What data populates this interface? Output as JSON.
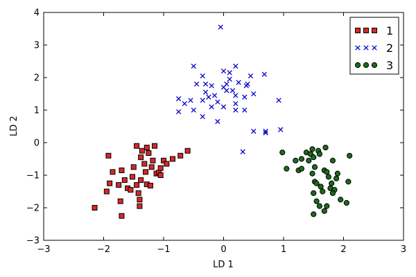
{
  "chart_data": {
    "type": "scatter",
    "title": "",
    "xlabel": "LD 1",
    "ylabel": "LD 2",
    "xlim": [
      -3,
      3
    ],
    "ylim": [
      -3,
      4
    ],
    "xticks": [
      "−3",
      "−2",
      "−1",
      "0",
      "1",
      "2",
      "3"
    ],
    "yticks": [
      "−3",
      "−2",
      "−1",
      "0",
      "1",
      "2",
      "3",
      "4"
    ],
    "grid": false,
    "legend_position": "top-right",
    "series": [
      {
        "name": "1",
        "marker": "square",
        "color": "#d62728",
        "points": [
          [
            -2.15,
            -2.0
          ],
          [
            -1.95,
            -1.5
          ],
          [
            -1.9,
            -1.25
          ],
          [
            -1.85,
            -0.9
          ],
          [
            -1.92,
            -0.4
          ],
          [
            -1.75,
            -1.3
          ],
          [
            -1.72,
            -1.8
          ],
          [
            -1.7,
            -2.25
          ],
          [
            -1.65,
            -1.15
          ],
          [
            -1.6,
            -1.4
          ],
          [
            -1.55,
            -1.45
          ],
          [
            -1.52,
            -1.05
          ],
          [
            -1.5,
            -0.75
          ],
          [
            -1.45,
            -1.3
          ],
          [
            -1.42,
            -1.55
          ],
          [
            -1.4,
            -1.75
          ],
          [
            -1.4,
            -1.95
          ],
          [
            -1.38,
            -0.45
          ],
          [
            -1.36,
            -0.25
          ],
          [
            -1.32,
            -0.65
          ],
          [
            -1.3,
            -0.9
          ],
          [
            -1.28,
            -1.28
          ],
          [
            -1.25,
            -0.32
          ],
          [
            -1.22,
            -1.32
          ],
          [
            -1.2,
            -0.75
          ],
          [
            -1.18,
            -0.55
          ],
          [
            -1.15,
            -0.1
          ],
          [
            -1.12,
            -0.95
          ],
          [
            -1.08,
            -0.92
          ],
          [
            -1.05,
            -0.78
          ],
          [
            -1.0,
            -0.55
          ],
          [
            -0.95,
            -0.65
          ],
          [
            -0.85,
            -0.5
          ],
          [
            -0.72,
            -0.4
          ],
          [
            -0.6,
            -0.25
          ],
          [
            -1.45,
            -0.1
          ],
          [
            -1.28,
            -0.15
          ],
          [
            -1.7,
            -0.85
          ],
          [
            -1.38,
            -1.15
          ],
          [
            -1.05,
            -1.0
          ]
        ]
      },
      {
        "name": "2",
        "marker": "x",
        "color": "#0000cc",
        "points": [
          [
            -0.05,
            3.55
          ],
          [
            -0.5,
            2.35
          ],
          [
            0.2,
            2.35
          ],
          [
            -0.35,
            2.05
          ],
          [
            0.0,
            2.2
          ],
          [
            0.1,
            2.15
          ],
          [
            0.68,
            2.1
          ],
          [
            0.45,
            2.05
          ],
          [
            -0.45,
            1.8
          ],
          [
            -0.3,
            1.8
          ],
          [
            -0.2,
            1.75
          ],
          [
            0.05,
            1.8
          ],
          [
            0.1,
            1.95
          ],
          [
            0.25,
            1.85
          ],
          [
            0.4,
            1.8
          ],
          [
            0.38,
            1.75
          ],
          [
            -0.3,
            1.55
          ],
          [
            -0.15,
            1.45
          ],
          [
            0.0,
            1.7
          ],
          [
            0.15,
            1.6
          ],
          [
            0.2,
            1.45
          ],
          [
            0.35,
            1.4
          ],
          [
            0.5,
            1.5
          ],
          [
            -0.35,
            1.3
          ],
          [
            -0.25,
            1.4
          ],
          [
            -0.1,
            1.25
          ],
          [
            0.0,
            1.1
          ],
          [
            0.2,
            1.2
          ],
          [
            -0.55,
            1.3
          ],
          [
            -0.65,
            1.2
          ],
          [
            -0.5,
            1.0
          ],
          [
            -0.75,
            1.35
          ],
          [
            -0.2,
            1.1
          ],
          [
            0.2,
            1.0
          ],
          [
            0.35,
            1.0
          ],
          [
            -0.35,
            0.8
          ],
          [
            -0.75,
            0.95
          ],
          [
            -0.1,
            0.65
          ],
          [
            0.5,
            0.35
          ],
          [
            0.7,
            0.35
          ],
          [
            0.7,
            0.3
          ],
          [
            0.95,
            0.4
          ],
          [
            0.92,
            1.3
          ],
          [
            0.32,
            -0.28
          ],
          [
            0.05,
            1.6
          ]
        ]
      },
      {
        "name": "3",
        "marker": "circle",
        "color": "#1a6b1a",
        "points": [
          [
            0.98,
            -0.3
          ],
          [
            1.05,
            -0.8
          ],
          [
            1.2,
            -0.55
          ],
          [
            1.25,
            -0.85
          ],
          [
            1.3,
            -0.8
          ],
          [
            1.3,
            -0.5
          ],
          [
            1.38,
            -0.3
          ],
          [
            1.42,
            -0.55
          ],
          [
            1.45,
            -0.35
          ],
          [
            1.48,
            -0.2
          ],
          [
            1.5,
            -0.45
          ],
          [
            1.52,
            -0.75
          ],
          [
            1.48,
            -0.95
          ],
          [
            1.52,
            -1.2
          ],
          [
            1.55,
            -1.25
          ],
          [
            1.5,
            -1.55
          ],
          [
            1.55,
            -1.8
          ],
          [
            1.58,
            -0.25
          ],
          [
            1.6,
            -0.35
          ],
          [
            1.62,
            -1.35
          ],
          [
            1.65,
            -1.5
          ],
          [
            1.68,
            -0.85
          ],
          [
            1.7,
            -0.15
          ],
          [
            1.72,
            -0.9
          ],
          [
            1.72,
            -1.95
          ],
          [
            1.75,
            -1.05
          ],
          [
            1.78,
            -1.4
          ],
          [
            1.8,
            -1.25
          ],
          [
            1.82,
            -0.55
          ],
          [
            1.85,
            -1.45
          ],
          [
            1.88,
            -1.1
          ],
          [
            1.9,
            -0.95
          ],
          [
            1.95,
            -1.75
          ],
          [
            2.05,
            -1.85
          ],
          [
            2.1,
            -0.4
          ],
          [
            2.08,
            -1.2
          ],
          [
            1.5,
            -2.2
          ],
          [
            1.6,
            -1.95
          ],
          [
            1.68,
            -2.1
          ],
          [
            1.82,
            -1.55
          ]
        ]
      }
    ]
  }
}
